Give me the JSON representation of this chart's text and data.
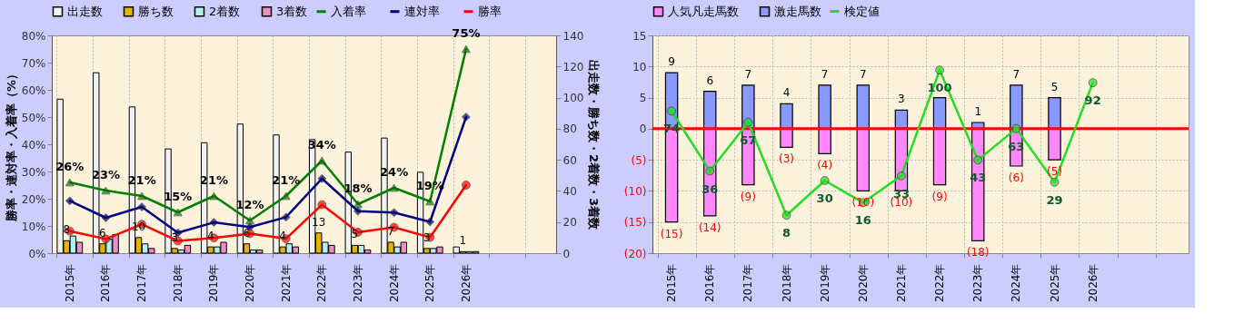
{
  "chart_data": [
    {
      "type": "bar",
      "categories": [
        "2015年",
        "2016年",
        "2017年",
        "2018年",
        "2019年",
        "2020年",
        "2021年",
        "2022年",
        "2023年",
        "2024年",
        "2025年",
        "2026年",
        null,
        null
      ],
      "ylabel": "勝率・連対率・入着率（%）",
      "y2label": "出走数・勝ち数・2着数・3着数",
      "ylim": [
        0,
        80
      ],
      "yticks": [
        {
          "value": 0,
          "label": "0%"
        },
        {
          "value": 10,
          "label": "10%"
        },
        {
          "value": 20,
          "label": "20%"
        },
        {
          "value": 30,
          "label": "30%"
        },
        {
          "value": 40,
          "label": "40%"
        },
        {
          "value": 50,
          "label": "50%"
        },
        {
          "value": 60,
          "label": "60%"
        },
        {
          "value": 70,
          "label": "70%"
        },
        {
          "value": 80,
          "label": "80%"
        }
      ],
      "y2lim": [
        0,
        140
      ],
      "y2ticks": [
        0,
        20,
        40,
        60,
        80,
        100,
        120,
        140
      ],
      "grid": true,
      "legend": "top",
      "series": [
        {
          "name": "出走数",
          "type": "bar",
          "axis": "y2",
          "color": "#f2f2f2",
          "values": [
            99,
            116,
            94,
            67,
            71,
            83,
            76,
            73,
            65,
            74,
            52,
            4,
            null,
            null
          ]
        },
        {
          "name": "勝ち数",
          "type": "bar",
          "axis": "y2",
          "color": "#e6b400",
          "values": [
            8,
            6,
            10,
            3,
            4,
            6,
            4,
            13,
            5,
            7,
            3,
            1,
            null,
            null
          ],
          "value_labels": [
            "8",
            "6",
            "10",
            "3",
            "4",
            "6",
            "4",
            "13",
            "5",
            "7",
            "3",
            "1",
            null,
            null
          ]
        },
        {
          "name": "2着数",
          "type": "bar",
          "axis": "y2",
          "color": "#b3f0f0",
          "values": [
            11,
            9,
            6,
            2,
            4,
            2,
            6,
            7,
            5,
            4,
            3,
            1,
            null,
            null
          ]
        },
        {
          "name": "3着数",
          "type": "bar",
          "axis": "y2",
          "color": "#f08cc8",
          "values": [
            7,
            12,
            3,
            5,
            7,
            2,
            4,
            5,
            2,
            7,
            4,
            1,
            null,
            null
          ]
        },
        {
          "name": "入着率",
          "type": "line",
          "color": "#008000",
          "marker": "triangle",
          "line_style": "solid",
          "values": [
            26,
            23,
            21,
            15,
            21,
            12,
            21,
            34,
            18,
            24,
            19,
            75,
            null,
            null
          ],
          "value_labels": [
            "26%",
            "23%",
            "21%",
            "15%",
            "21%",
            "12%",
            "21%",
            "34%",
            "18%",
            "24%",
            "19%",
            "75%",
            null,
            null
          ]
        },
        {
          "name": "連対率",
          "type": "line",
          "color": "#000080",
          "marker": "diamond",
          "line_style": "solid",
          "values": [
            19.2,
            13,
            17,
            7.5,
            11.3,
            9.6,
            13.2,
            27.4,
            15.4,
            14.9,
            11.5,
            50,
            null,
            null
          ]
        },
        {
          "name": "勝率",
          "type": "line",
          "color": "#ff0000",
          "marker": "circle",
          "line_style": "solid",
          "values": [
            8.1,
            5.2,
            10.6,
            4.5,
            5.6,
            7.2,
            5.3,
            17.8,
            7.7,
            9.5,
            5.8,
            25,
            null,
            null
          ]
        }
      ]
    },
    {
      "type": "bar",
      "categories": [
        "2015年",
        "2016年",
        "2017年",
        "2018年",
        "2019年",
        "2020年",
        "2021年",
        "2022年",
        "2023年",
        "2024年",
        "2025年",
        "2026年",
        null,
        null
      ],
      "ylim": [
        -20,
        15
      ],
      "yticks": [
        {
          "value": -20,
          "label": "(20)"
        },
        {
          "value": -15,
          "label": "(15)"
        },
        {
          "value": -10,
          "label": "(10)"
        },
        {
          "value": -5,
          "label": "(5)"
        },
        0,
        5,
        10,
        15
      ],
      "y2lim": [
        -16,
        122
      ],
      "stacked": true,
      "grid": true,
      "legend": "top",
      "ref_lines": [
        {
          "axis": "y",
          "value": 0,
          "color": "#ff0000"
        }
      ],
      "series": [
        {
          "name": "人気凡走馬数",
          "type": "bar",
          "color": "#ff88ff",
          "values": [
            -15,
            -14,
            -9,
            -3,
            -4,
            -10,
            -10,
            -9,
            -18,
            -6,
            -5,
            null,
            null,
            null
          ],
          "value_labels": [
            "(15)",
            "(14)",
            "(9)",
            "(3)",
            "(4)",
            "(10)",
            "(10)",
            "(9)",
            "(18)",
            "(6)",
            "(5)",
            null,
            null,
            null
          ]
        },
        {
          "name": "激走馬数",
          "type": "bar",
          "color": "#8899ff",
          "values": [
            9,
            6,
            7,
            4,
            7,
            7,
            3,
            5,
            1,
            7,
            5,
            null,
            null,
            null
          ],
          "value_labels": [
            "9",
            "6",
            "7",
            "4",
            "7",
            "7",
            "3",
            null,
            "1",
            "7",
            "5",
            null,
            null,
            null
          ]
        },
        {
          "name": "検定値",
          "type": "line",
          "axis": "y2",
          "color": "#22dd22",
          "marker": "circle",
          "line_style": "solid",
          "values": [
            74,
            36,
            67,
            8,
            30,
            16,
            33,
            100,
            43,
            63,
            29,
            92,
            null,
            null
          ],
          "value_labels": [
            "74",
            "36",
            "67",
            "8",
            "30",
            "16",
            "33",
            "100",
            "43",
            "63",
            "29",
            "92",
            null,
            null
          ]
        }
      ]
    }
  ]
}
